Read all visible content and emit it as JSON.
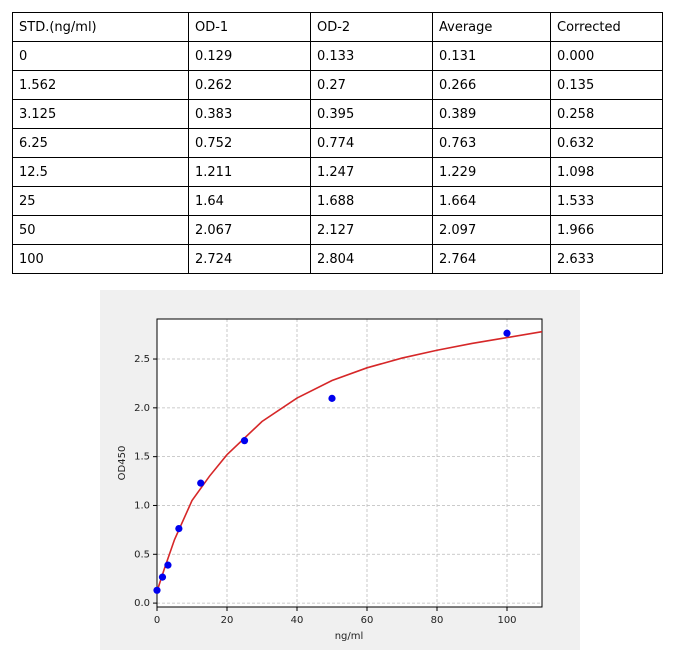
{
  "table": {
    "header": [
      "STD.(ng/ml)",
      "OD-1",
      "OD-2",
      "Average",
      "Corrected"
    ],
    "rows": [
      [
        "0",
        "0.129",
        "0.133",
        "0.131",
        "0.000"
      ],
      [
        "1.562",
        "0.262",
        "0.27",
        "0.266",
        "0.135"
      ],
      [
        "3.125",
        "0.383",
        "0.395",
        "0.389",
        "0.258"
      ],
      [
        "6.25",
        "0.752",
        "0.774",
        "0.763",
        "0.632"
      ],
      [
        "12.5",
        "1.211",
        "1.247",
        "1.229",
        "1.098"
      ],
      [
        "25",
        "1.64",
        "1.688",
        "1.664",
        "1.533"
      ],
      [
        "50",
        "2.067",
        "2.127",
        "2.097",
        "1.966"
      ],
      [
        "100",
        "2.724",
        "2.804",
        "2.764",
        "2.633"
      ]
    ]
  },
  "chart_data": {
    "type": "scatter",
    "xlabel": "ng/ml",
    "ylabel": "OD450",
    "xlim": [
      0,
      110
    ],
    "ylim": [
      -0.04,
      2.91
    ],
    "xticks": [
      0,
      20,
      40,
      60,
      80,
      100
    ],
    "yticks": [
      {
        "value": 0,
        "label": "0.0"
      },
      0.5,
      {
        "value": 1,
        "label": "1.0"
      },
      1.5,
      {
        "value": 2,
        "label": "2.0"
      },
      2.5
    ],
    "grid": true,
    "points": {
      "color": "#0000ee",
      "x": [
        0,
        1.562,
        3.125,
        6.25,
        12.5,
        25,
        50,
        100
      ],
      "values": [
        0.131,
        0.266,
        0.389,
        0.763,
        1.229,
        1.664,
        2.097,
        2.764
      ]
    },
    "curve": {
      "color": "#d62728",
      "x": [
        0,
        2,
        5,
        10,
        15,
        20,
        30,
        40,
        50,
        60,
        70,
        80,
        90,
        100,
        110
      ],
      "values": [
        0.12,
        0.34,
        0.65,
        1.05,
        1.3,
        1.52,
        1.86,
        2.1,
        2.28,
        2.41,
        2.51,
        2.59,
        2.66,
        2.72,
        2.78
      ]
    }
  }
}
